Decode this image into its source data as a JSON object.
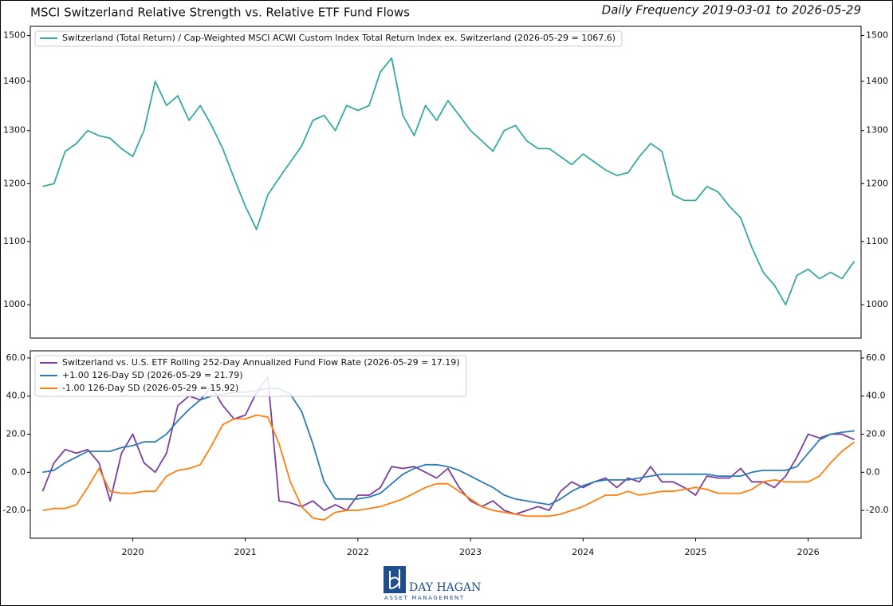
{
  "header": {
    "title": "MSCI Switzerland Relative Strength vs. Relative ETF Fund Flows",
    "subtitle": "Daily Frequency 2019-03-01 to 2026-05-29"
  },
  "logo": {
    "name": "DAY HAGAN",
    "tagline": "ASSET MANAGEMENT"
  },
  "chart_data": [
    {
      "type": "line",
      "log_scale": true,
      "legend": "upper left",
      "x": [
        2019.2,
        2019.3,
        2019.4,
        2019.5,
        2019.6,
        2019.7,
        2019.8,
        2019.9,
        2020.0,
        2020.1,
        2020.2,
        2020.3,
        2020.4,
        2020.5,
        2020.6,
        2020.7,
        2020.8,
        2020.9,
        2021.0,
        2021.1,
        2021.2,
        2021.3,
        2021.4,
        2021.5,
        2021.6,
        2021.7,
        2021.8,
        2021.9,
        2022.0,
        2022.1,
        2022.2,
        2022.3,
        2022.4,
        2022.5,
        2022.6,
        2022.7,
        2022.8,
        2022.9,
        2023.0,
        2023.1,
        2023.2,
        2023.3,
        2023.4,
        2023.5,
        2023.6,
        2023.7,
        2023.8,
        2023.9,
        2024.0,
        2024.1,
        2024.2,
        2024.3,
        2024.4,
        2024.5,
        2024.6,
        2024.7,
        2024.8,
        2024.9,
        2025.0,
        2025.1,
        2025.2,
        2025.3,
        2025.4,
        2025.5,
        2025.6,
        2025.7,
        2025.8,
        2025.9,
        2026.0,
        2026.1,
        2026.2,
        2026.3,
        2026.41
      ],
      "xlim": [
        2019.09,
        2026.47
      ],
      "ylim": [
        951,
        1521
      ],
      "yticks": [
        1000,
        1100,
        1200,
        1300,
        1400,
        1500
      ],
      "series": [
        {
          "name": "Switzerland (Total Return) / Cap-Weighted MSCI ACWI Custom Index Total Return Index ex. Switzerland (2026-05-29 = 1067.6)",
          "color": "#36a9a3",
          "values": [
            1195,
            1200,
            1260,
            1275,
            1300,
            1290,
            1285,
            1265,
            1250,
            1300,
            1400,
            1350,
            1370,
            1320,
            1350,
            1310,
            1265,
            1210,
            1160,
            1120,
            1180,
            1210,
            1240,
            1270,
            1320,
            1330,
            1300,
            1350,
            1340,
            1350,
            1420,
            1450,
            1330,
            1290,
            1350,
            1320,
            1360,
            1330,
            1300,
            1280,
            1260,
            1300,
            1310,
            1280,
            1265,
            1265,
            1250,
            1235,
            1255,
            1240,
            1225,
            1215,
            1220,
            1250,
            1275,
            1260,
            1180,
            1170,
            1170,
            1195,
            1185,
            1160,
            1140,
            1090,
            1050,
            1030,
            1000,
            1045,
            1055,
            1040,
            1050,
            1040,
            1067.6
          ]
        }
      ]
    },
    {
      "type": "line",
      "legend": "upper left",
      "x": [
        2019.2,
        2019.3,
        2019.4,
        2019.5,
        2019.6,
        2019.7,
        2019.8,
        2019.9,
        2020.0,
        2020.1,
        2020.2,
        2020.3,
        2020.4,
        2020.5,
        2020.6,
        2020.7,
        2020.8,
        2020.9,
        2021.0,
        2021.1,
        2021.2,
        2021.3,
        2021.4,
        2021.5,
        2021.6,
        2021.7,
        2021.8,
        2021.9,
        2022.0,
        2022.1,
        2022.2,
        2022.3,
        2022.4,
        2022.5,
        2022.6,
        2022.7,
        2022.8,
        2022.9,
        2023.0,
        2023.1,
        2023.2,
        2023.3,
        2023.4,
        2023.5,
        2023.6,
        2023.7,
        2023.8,
        2023.9,
        2024.0,
        2024.1,
        2024.2,
        2024.3,
        2024.4,
        2024.5,
        2024.6,
        2024.7,
        2024.8,
        2024.9,
        2025.0,
        2025.1,
        2025.2,
        2025.3,
        2025.4,
        2025.5,
        2025.6,
        2025.7,
        2025.8,
        2025.9,
        2026.0,
        2026.1,
        2026.2,
        2026.3,
        2026.41
      ],
      "xlim": [
        2019.09,
        2026.47
      ],
      "xticks": [
        2020,
        2021,
        2022,
        2023,
        2024,
        2025,
        2026
      ],
      "ylim": [
        -34.6,
        63.75
      ],
      "yticks": [
        {
          "value": 60,
          "label": "60.0"
        },
        {
          "value": 40,
          "label": "40.0"
        },
        {
          "value": 20,
          "label": "20.0"
        },
        {
          "value": 0,
          "label": "0.0"
        },
        {
          "value": -20,
          "label": "-20.0"
        }
      ],
      "series": [
        {
          "name": "Switzerland vs. U.S. ETF Rolling 252-Day Annualized Fund Flow Rate (2026-05-29 = 17.19)",
          "color": "#7a3e9d",
          "values": [
            -10,
            5,
            12,
            10,
            12,
            5,
            -15,
            10,
            20,
            5,
            0,
            10,
            35,
            40,
            38,
            45,
            35,
            28,
            30,
            42,
            50,
            -15,
            -16,
            -18,
            -15,
            -20,
            -17,
            -20,
            -12,
            -12,
            -8,
            3,
            2,
            3,
            0,
            -3,
            2,
            -8,
            -15,
            -18,
            -15,
            -20,
            -22,
            -20,
            -18,
            -20,
            -10,
            -5,
            -8,
            -5,
            -3,
            -8,
            -3,
            -5,
            3,
            -5,
            -5,
            -8,
            -12,
            -2,
            -3,
            -3,
            2,
            -5,
            -5,
            -8,
            -2,
            8,
            20,
            18,
            20,
            20,
            17.19
          ]
        },
        {
          "name": "+1.00 126-Day SD (2026-05-29 = 21.79)",
          "color": "#2b7bb9",
          "values": [
            0,
            1,
            5,
            8,
            11,
            11,
            11,
            13,
            14,
            16,
            16,
            20,
            27,
            33,
            38,
            40,
            41,
            42,
            42,
            43,
            44,
            44,
            41,
            32,
            15,
            -5,
            -14,
            -14,
            -14,
            -13,
            -11,
            -6,
            -1,
            2,
            4,
            4,
            3,
            1,
            -2,
            -5,
            -8,
            -12,
            -14,
            -15,
            -16,
            -17,
            -14,
            -10,
            -7,
            -5,
            -4,
            -4,
            -4,
            -3,
            -2,
            -1,
            -1,
            -1,
            -1,
            -1,
            -2,
            -2,
            -2,
            0,
            1,
            1,
            1,
            3,
            10,
            17,
            20,
            21,
            21.79
          ]
        },
        {
          "name": "-1.00 126-Day SD (2026-05-29 = 15.92)",
          "color": "#ff7f0e",
          "values": [
            -20,
            -19,
            -19,
            -17,
            -8,
            2,
            -10,
            -11,
            -11,
            -10,
            -10,
            -2,
            1,
            2,
            4,
            14,
            25,
            28,
            28,
            30,
            29,
            15,
            -5,
            -18,
            -24,
            -25,
            -21,
            -20,
            -20,
            -19,
            -18,
            -16,
            -14,
            -11,
            -8,
            -6,
            -6,
            -10,
            -14,
            -18,
            -20,
            -21,
            -22,
            -23,
            -23,
            -23,
            -22,
            -20,
            -18,
            -15,
            -12,
            -12,
            -10,
            -12,
            -11,
            -10,
            -10,
            -9,
            -8,
            -9,
            -11,
            -11,
            -11,
            -9,
            -5,
            -4,
            -5,
            -5,
            -5,
            -2,
            5,
            11,
            15.92
          ]
        }
      ]
    }
  ]
}
